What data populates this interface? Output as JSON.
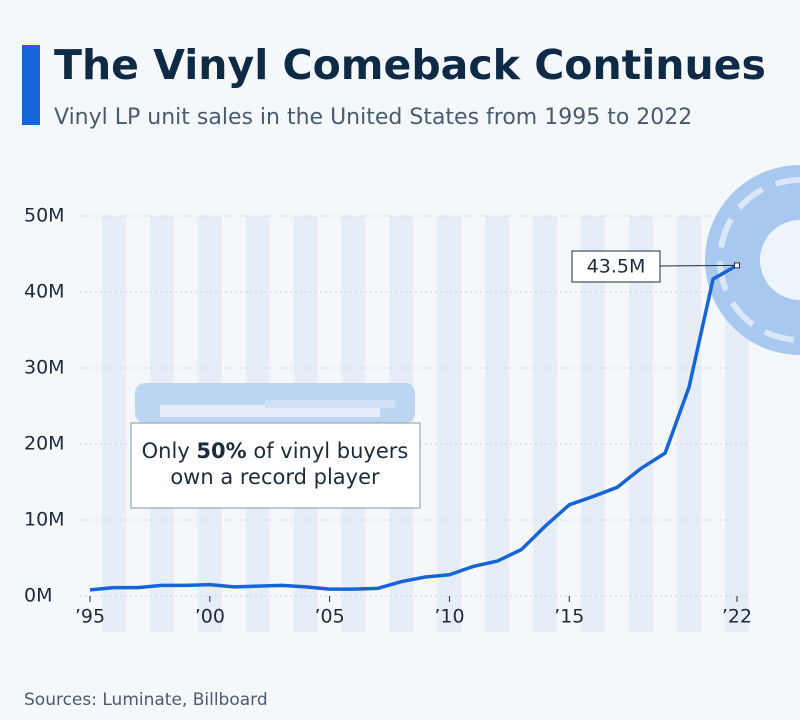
{
  "chart_data": {
    "type": "line",
    "title": "The Vinyl Comeback Continues",
    "subtitle": "Vinyl LP unit sales in the United States from 1995 to 2022",
    "source": "Sources: Luminate, Billboard",
    "x": [
      1995,
      1996,
      1997,
      1998,
      1999,
      2000,
      2001,
      2002,
      2003,
      2004,
      2005,
      2006,
      2007,
      2008,
      2009,
      2010,
      2011,
      2012,
      2013,
      2014,
      2015,
      2016,
      2017,
      2018,
      2019,
      2020,
      2021,
      2022
    ],
    "values": [
      0.8,
      1.1,
      1.1,
      1.4,
      1.4,
      1.5,
      1.2,
      1.3,
      1.4,
      1.2,
      0.9,
      0.9,
      1.0,
      1.9,
      2.5,
      2.8,
      3.9,
      4.6,
      6.1,
      9.2,
      12.0,
      13.1,
      14.3,
      16.8,
      18.8,
      27.5,
      41.7,
      43.5
    ],
    "value_labels": [
      null,
      null,
      null,
      null,
      null,
      null,
      null,
      null,
      null,
      null,
      null,
      null,
      null,
      null,
      null,
      null,
      null,
      null,
      null,
      null,
      null,
      null,
      null,
      null,
      null,
      null,
      null,
      "43.5M"
    ],
    "color": "#1565d8",
    "xlim": [
      1995,
      2022
    ],
    "xticks": [
      {
        "value": 1995,
        "label": "’95"
      },
      {
        "value": 2000,
        "label": "’00"
      },
      {
        "value": 2005,
        "label": "’05"
      },
      {
        "value": 2010,
        "label": "’10"
      },
      {
        "value": 2015,
        "label": "’15"
      },
      {
        "value": 2022,
        "label": "’22"
      }
    ],
    "ylim": [
      0,
      50
    ],
    "yticks": [
      {
        "value": 0,
        "label": "0M"
      },
      {
        "value": 10,
        "label": "10M"
      },
      {
        "value": 20,
        "label": "20M"
      },
      {
        "value": 30,
        "label": "30M"
      },
      {
        "value": 40,
        "label": "40M"
      },
      {
        "value": 50,
        "label": "50M"
      }
    ],
    "grid": true,
    "annotation": {
      "before": "Only ",
      "bold": "50%",
      "after": " of vinyl buyers",
      "line2": "own a record player"
    }
  }
}
